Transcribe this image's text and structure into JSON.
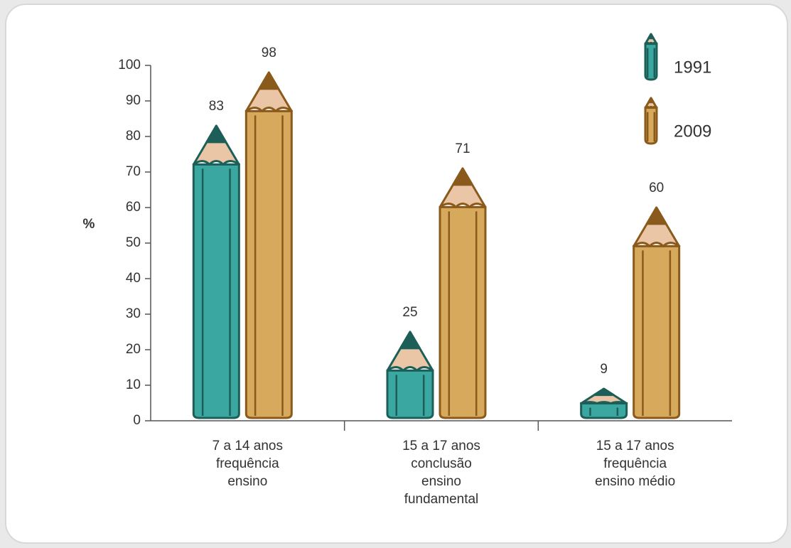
{
  "chart_data": {
    "type": "pencil-bar",
    "y_label": "%",
    "categories": [
      [
        "7 a 14 anos",
        "frequência",
        "ensino"
      ],
      [
        "15 a 17 anos",
        "conclusão",
        "ensino",
        "fundamental"
      ],
      [
        "15 a 17 anos",
        "frequência",
        "ensino médio"
      ]
    ],
    "series": [
      {
        "name": "1991",
        "color": "#3aa8a0",
        "values": [
          83,
          25,
          9
        ]
      },
      {
        "name": "2009",
        "color": "#d6a95c",
        "values": [
          98,
          71,
          60
        ]
      }
    ],
    "ylim": [
      0,
      100
    ],
    "yticks": [
      0,
      10,
      20,
      30,
      40,
      50,
      60,
      70,
      80,
      90,
      100
    ]
  }
}
